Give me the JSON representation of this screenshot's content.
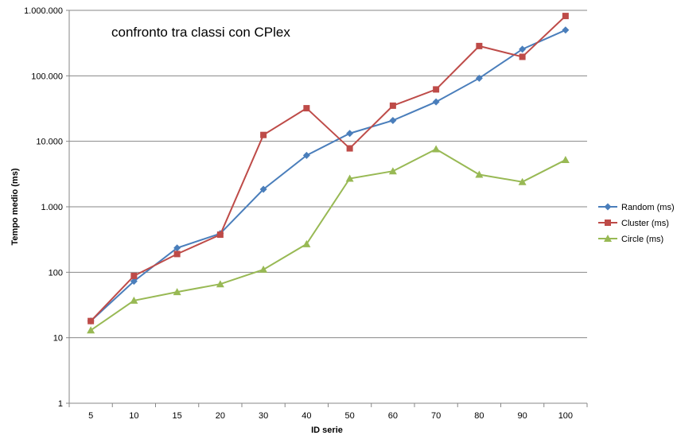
{
  "chart_data": {
    "type": "line",
    "title": "confronto tra classi con CPlex",
    "xlabel": "ID serie",
    "ylabel": "Tempo medio (ms)",
    "yscale": "log",
    "ylim": [
      1,
      1000000
    ],
    "yticks": [
      1,
      10,
      100,
      1000,
      10000,
      100000,
      1000000
    ],
    "ytick_labels": [
      "1",
      "10",
      "100",
      "1.000",
      "10.000",
      "100.000",
      "1.000.000"
    ],
    "categories": [
      "5",
      "10",
      "15",
      "20",
      "30",
      "40",
      "50",
      "60",
      "70",
      "80",
      "90",
      "100"
    ],
    "grid": "horizontal",
    "legend_position": "right",
    "series": [
      {
        "name": "Random (ms)",
        "color": "#4A7EBB",
        "marker": "diamond",
        "values": [
          18,
          73,
          235,
          390,
          1850,
          6100,
          13200,
          20800,
          40000,
          92000,
          255000,
          500000
        ]
      },
      {
        "name": "Cluster (ms)",
        "color": "#BE4B48",
        "marker": "square",
        "values": [
          18,
          88,
          190,
          375,
          12500,
          32000,
          7800,
          35000,
          62000,
          285000,
          195000,
          820000
        ]
      },
      {
        "name": "Circle (ms)",
        "color": "#98B954",
        "marker": "triangle",
        "values": [
          13,
          37,
          50,
          66,
          110,
          270,
          2700,
          3500,
          7600,
          3100,
          2400,
          5200
        ]
      }
    ]
  }
}
